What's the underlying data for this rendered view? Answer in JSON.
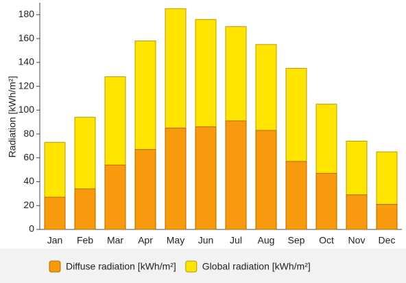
{
  "chart_data": {
    "type": "overlap_bar",
    "y_label": "Radiation [kWh/m²]",
    "categories": [
      "Jan",
      "Feb",
      "Mar",
      "Apr",
      "May",
      "Jun",
      "Jul",
      "Aug",
      "Sep",
      "Oct",
      "Nov",
      "Dec"
    ],
    "series": [
      {
        "name": "Global radiation [kWh/m²]",
        "color": "#ffe400",
        "edge": "#b39b00",
        "values": [
          73,
          94,
          128,
          158,
          185,
          176,
          170,
          155,
          135,
          105,
          74,
          65
        ]
      },
      {
        "name": "Diffuse radiation [kWh/m²]",
        "color": "#f79a0e",
        "edge": "#b36a00",
        "values": [
          27,
          34,
          54,
          67,
          85,
          86,
          91,
          83,
          57,
          47,
          29,
          21
        ]
      }
    ],
    "legend_order": [
      1,
      0
    ],
    "ylim": [
      0,
      190
    ],
    "yticks": [
      0,
      20,
      40,
      60,
      80,
      100,
      120,
      140,
      160,
      180
    ]
  }
}
